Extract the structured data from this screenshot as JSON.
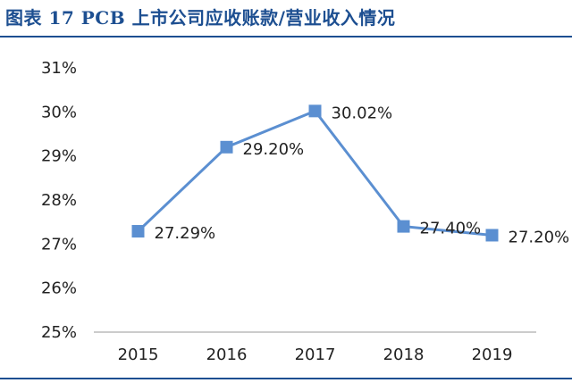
{
  "title": "图表 17   PCB 上市公司应收账款/营业收入情况",
  "colors": {
    "accent": "#1d4f91",
    "series": "#5b8fd1"
  },
  "chart_data": {
    "type": "line",
    "title": "",
    "xlabel": "",
    "ylabel": "",
    "categories": [
      "2015",
      "2016",
      "2017",
      "2018",
      "2019"
    ],
    "series": [
      {
        "values": [
          27.29,
          29.2,
          30.02,
          27.4,
          27.2
        ],
        "labels": [
          "27.29%",
          "29.20%",
          "30.02%",
          "27.40%",
          "27.20%"
        ]
      }
    ],
    "ylim": [
      25,
      31
    ],
    "yticks": [
      "25%",
      "26%",
      "27%",
      "28%",
      "29%",
      "30%",
      "31%"
    ],
    "grid": false,
    "legend": "none"
  }
}
